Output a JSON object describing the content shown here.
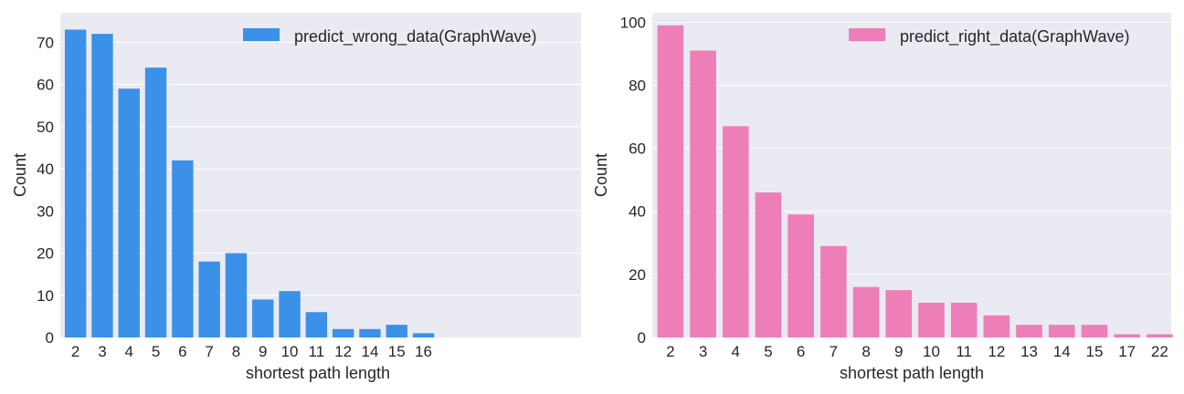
{
  "chart_data": [
    {
      "type": "bar",
      "categories": [
        "2",
        "3",
        "4",
        "5",
        "6",
        "7",
        "8",
        "9",
        "10",
        "11",
        "12",
        "14",
        "15",
        "16"
      ],
      "series": [
        {
          "name": "predict_wrong_data(GraphWave)",
          "values": [
            73,
            72,
            59,
            64,
            42,
            18,
            20,
            9,
            11,
            6,
            2,
            2,
            3,
            1
          ],
          "color": "#3b91e8"
        }
      ],
      "xlabel": "shortest path length",
      "ylabel": "Count",
      "ylim": [
        0,
        77
      ],
      "yticks": [
        0,
        10,
        20,
        30,
        40,
        50,
        60,
        70
      ],
      "legend_position": "top-right",
      "grid": true
    },
    {
      "type": "bar",
      "categories": [
        "2",
        "3",
        "4",
        "5",
        "6",
        "7",
        "8",
        "9",
        "10",
        "11",
        "12",
        "13",
        "14",
        "15",
        "17",
        "22"
      ],
      "series": [
        {
          "name": "predict_right_data(GraphWave)",
          "values": [
            99,
            91,
            67,
            46,
            39,
            29,
            16,
            15,
            11,
            11,
            7,
            4,
            4,
            4,
            1,
            1
          ],
          "color": "#ed7eb7"
        }
      ],
      "xlabel": "shortest path length",
      "ylabel": "Count",
      "ylim": [
        0,
        103
      ],
      "yticks": [
        0,
        20,
        40,
        60,
        80,
        100
      ],
      "legend_position": "top-right",
      "grid": true
    }
  ],
  "style": {
    "plot_background": "#eaeaf2",
    "grid_color": "#ffffff",
    "text_color": "#262626"
  }
}
